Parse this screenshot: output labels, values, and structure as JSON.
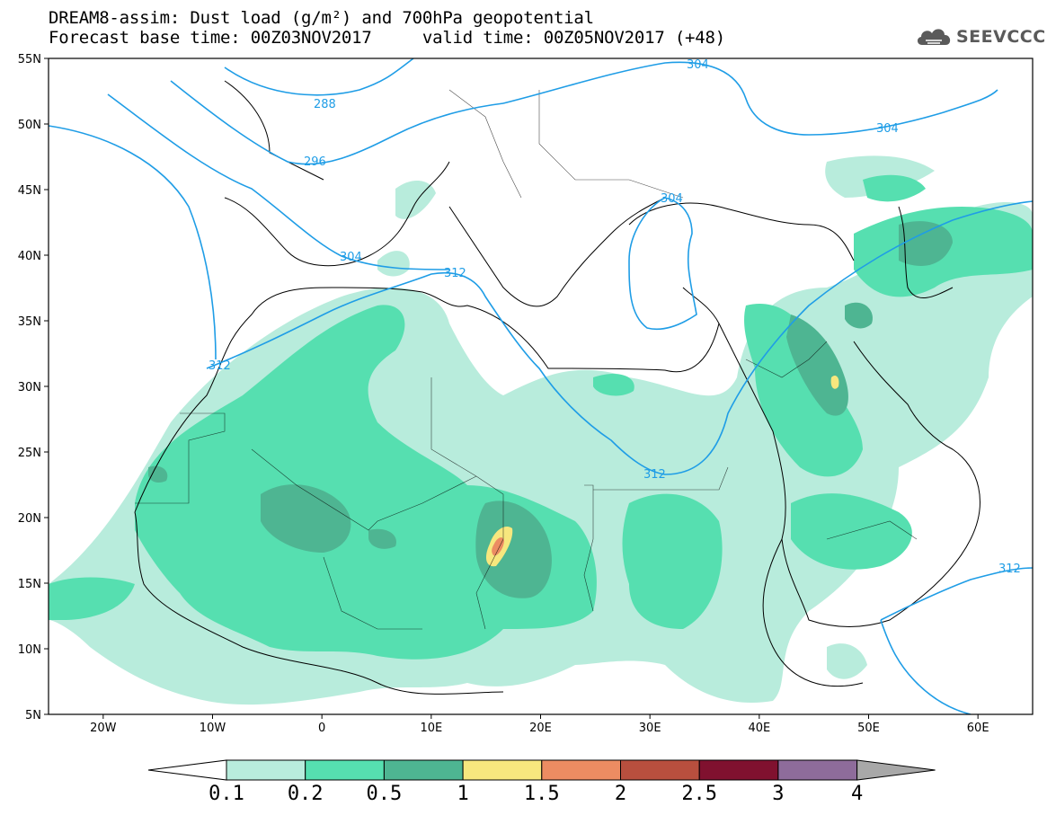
{
  "header": {
    "title_line1": "DREAM8-assim: Dust load (g/m²) and 700hPa geopotential",
    "title_line2": "Forecast base time: 00Z03NOV2017     valid time: 00Z05NOV2017 (+48)"
  },
  "logo": {
    "text": "SEEVCCC",
    "icon": "cloud-icon"
  },
  "map": {
    "lon_range": [
      -25,
      65
    ],
    "lat_range": [
      5,
      55
    ],
    "lat_ticks": [
      "55N",
      "50N",
      "45N",
      "40N",
      "35N",
      "30N",
      "25N",
      "20N",
      "15N",
      "10N",
      "5N"
    ],
    "lon_ticks": [
      "20W",
      "10W",
      "0",
      "10E",
      "20E",
      "30E",
      "40E",
      "50E",
      "60E"
    ],
    "contour_labels": [
      "304",
      "288",
      "296",
      "304",
      "304",
      "304",
      "312",
      "312",
      "312",
      "312"
    ],
    "contour_color": "#1f9de6"
  },
  "colorbar": {
    "labels": [
      "0.1",
      "0.2",
      "0.5",
      "1",
      "1.5",
      "2",
      "2.5",
      "3",
      "4"
    ],
    "colors": [
      "#ffffff",
      "#b8ecdc",
      "#56dfb0",
      "#4eb592",
      "#f7e77e",
      "#ec8c62",
      "#b84f3e",
      "#80112f",
      "#8e6c9b",
      "#a8a8a8"
    ]
  }
}
